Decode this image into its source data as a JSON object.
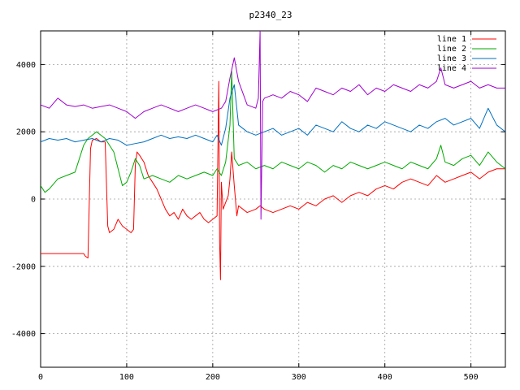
{
  "chart_data": {
    "type": "line",
    "title": "p2340_23",
    "xlabel": "",
    "ylabel": "",
    "xlim": [
      0,
      540
    ],
    "ylim": [
      -5000,
      5000
    ],
    "xticks": [
      0,
      100,
      200,
      300,
      400,
      500
    ],
    "yticks": [
      -4000,
      -2000,
      0,
      2000,
      4000
    ],
    "grid": true,
    "legend_position": "top-right",
    "series": [
      {
        "name": "line 1",
        "color": "#ff0000",
        "x": [
          0,
          10,
          20,
          30,
          40,
          50,
          52,
          55,
          58,
          60,
          65,
          70,
          75,
          78,
          80,
          85,
          90,
          95,
          100,
          105,
          108,
          110,
          112,
          115,
          120,
          125,
          130,
          135,
          140,
          145,
          150,
          155,
          160,
          165,
          170,
          175,
          180,
          185,
          190,
          195,
          200,
          205,
          207,
          208,
          209,
          210,
          212,
          215,
          218,
          220,
          222,
          225,
          228,
          230,
          240,
          250,
          255,
          260,
          270,
          280,
          290,
          300,
          310,
          320,
          330,
          340,
          350,
          360,
          370,
          380,
          390,
          400,
          410,
          420,
          430,
          440,
          450,
          460,
          470,
          480,
          490,
          500,
          510,
          520,
          530,
          540
        ],
        "y": [
          -1620,
          -1620,
          -1620,
          -1620,
          -1620,
          -1620,
          -1700,
          -1750,
          1500,
          1750,
          1800,
          1700,
          1700,
          -800,
          -1000,
          -900,
          -600,
          -800,
          -900,
          -1000,
          -900,
          1000,
          1400,
          1300,
          1100,
          700,
          500,
          300,
          0,
          -300,
          -500,
          -400,
          -600,
          -300,
          -500,
          -600,
          -500,
          -400,
          -600,
          -700,
          -600,
          -500,
          3500,
          -1300,
          -2400,
          500,
          -300,
          -100,
          100,
          600,
          1400,
          400,
          -500,
          -200,
          -400,
          -300,
          -200,
          -300,
          -400,
          -300,
          -200,
          -300,
          -100,
          -200,
          0,
          100,
          -100,
          100,
          200,
          100,
          300,
          400,
          300,
          500,
          600,
          500,
          400,
          700,
          500,
          600,
          700,
          800,
          600,
          800,
          900,
          900
        ]
      },
      {
        "name": "line 2",
        "color": "#00aa00",
        "x": [
          0,
          5,
          10,
          20,
          30,
          40,
          45,
          50,
          55,
          60,
          65,
          70,
          75,
          80,
          85,
          90,
          95,
          100,
          105,
          110,
          115,
          120,
          130,
          140,
          150,
          160,
          170,
          180,
          190,
          200,
          205,
          210,
          215,
          220,
          222,
          225,
          230,
          240,
          250,
          260,
          270,
          280,
          290,
          300,
          310,
          320,
          330,
          340,
          350,
          360,
          370,
          380,
          390,
          400,
          410,
          420,
          430,
          440,
          450,
          460,
          465,
          470,
          480,
          490,
          500,
          510,
          520,
          530,
          540
        ],
        "y": [
          400,
          200,
          300,
          600,
          700,
          800,
          1200,
          1600,
          1800,
          1900,
          2000,
          1900,
          1800,
          1600,
          1400,
          900,
          400,
          500,
          800,
          1200,
          1000,
          600,
          700,
          600,
          500,
          700,
          600,
          700,
          800,
          700,
          900,
          700,
          1100,
          2200,
          3800,
          1200,
          1000,
          1100,
          900,
          1000,
          900,
          1100,
          1000,
          900,
          1100,
          1000,
          800,
          1000,
          900,
          1100,
          1000,
          900,
          1000,
          1100,
          1000,
          900,
          1100,
          1000,
          900,
          1200,
          1600,
          1100,
          1000,
          1200,
          1300,
          1000,
          1400,
          1100,
          900
        ]
      },
      {
        "name": "line 3",
        "color": "#0070c0",
        "x": [
          0,
          10,
          20,
          30,
          40,
          50,
          60,
          70,
          80,
          90,
          100,
          110,
          120,
          130,
          140,
          150,
          160,
          170,
          180,
          190,
          200,
          205,
          210,
          215,
          220,
          225,
          230,
          240,
          250,
          260,
          270,
          280,
          290,
          300,
          310,
          320,
          330,
          340,
          350,
          360,
          370,
          380,
          390,
          400,
          410,
          420,
          430,
          440,
          450,
          460,
          470,
          480,
          490,
          500,
          510,
          520,
          530,
          540
        ],
        "y": [
          1700,
          1800,
          1750,
          1800,
          1700,
          1750,
          1800,
          1700,
          1800,
          1750,
          1600,
          1650,
          1700,
          1800,
          1900,
          1800,
          1850,
          1800,
          1900,
          1800,
          1700,
          1900,
          1600,
          2100,
          3000,
          3400,
          2200,
          2000,
          1900,
          2000,
          2100,
          1900,
          2000,
          2100,
          1900,
          2200,
          2100,
          2000,
          2300,
          2100,
          2000,
          2200,
          2100,
          2300,
          2200,
          2100,
          2000,
          2200,
          2100,
          2300,
          2400,
          2200,
          2300,
          2400,
          2100,
          2700,
          2200,
          2000
        ]
      },
      {
        "name": "line 4",
        "color": "#a000d0",
        "x": [
          0,
          10,
          20,
          30,
          40,
          50,
          60,
          70,
          80,
          90,
          100,
          110,
          120,
          130,
          140,
          150,
          160,
          170,
          180,
          190,
          200,
          210,
          215,
          220,
          225,
          230,
          240,
          250,
          253,
          255,
          256,
          258,
          260,
          270,
          280,
          290,
          300,
          310,
          320,
          330,
          340,
          350,
          360,
          370,
          380,
          390,
          400,
          410,
          420,
          430,
          440,
          450,
          460,
          465,
          470,
          480,
          490,
          500,
          510,
          520,
          530,
          540
        ],
        "y": [
          2800,
          2700,
          3000,
          2800,
          2750,
          2800,
          2700,
          2750,
          2800,
          2700,
          2600,
          2400,
          2600,
          2700,
          2800,
          2700,
          2600,
          2700,
          2800,
          2700,
          2600,
          2700,
          2900,
          3600,
          4200,
          3500,
          2800,
          2700,
          3000,
          5000,
          -600,
          2900,
          3000,
          3100,
          3000,
          3200,
          3100,
          2900,
          3300,
          3200,
          3100,
          3300,
          3200,
          3400,
          3100,
          3300,
          3200,
          3400,
          3300,
          3200,
          3400,
          3300,
          3500,
          3900,
          3400,
          3300,
          3400,
          3500,
          3300,
          3400,
          3300,
          3300
        ]
      }
    ]
  }
}
